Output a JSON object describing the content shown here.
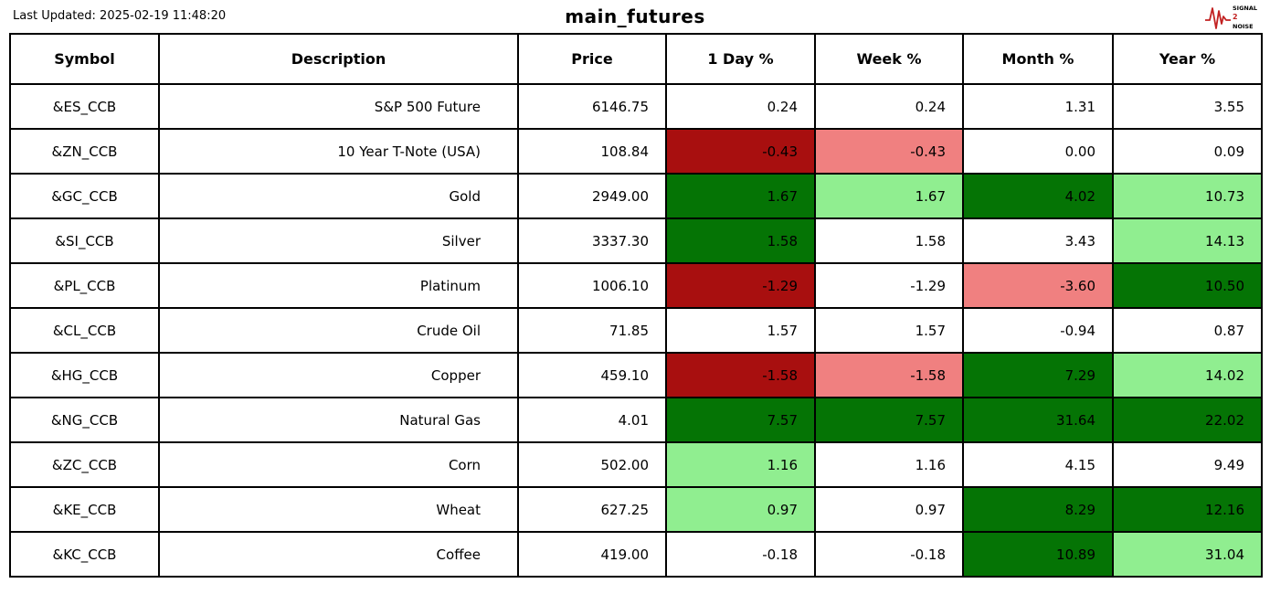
{
  "header": {
    "last_updated": "Last Updated: 2025-02-19 11:48:20",
    "title": "main_futures",
    "logo": {
      "word1": "SIGNAL",
      "word2": "2",
      "word3": "NOISE"
    }
  },
  "colors": {
    "dark_red": "#a80f0f",
    "light_red": "#f08080",
    "dark_green": "#057405",
    "light_green": "#90ee90",
    "border": "#000000",
    "background": "#ffffff",
    "logo_red": "#c22222"
  },
  "chart_data": {
    "type": "table",
    "title": "main_futures",
    "columns": [
      "Symbol",
      "Description",
      "Price",
      "1 Day %",
      "Week %",
      "Month %",
      "Year %"
    ],
    "rows": [
      {
        "symbol": "&ES_CCB",
        "description": "S&P 500 Future",
        "price": "6146.75",
        "values": {
          "day": "0.24",
          "week": "0.24",
          "month": "1.31",
          "year": "3.55"
        },
        "backgrounds": {
          "day": null,
          "week": null,
          "month": null,
          "year": null
        }
      },
      {
        "symbol": "&ZN_CCB",
        "description": "10 Year T-Note (USA)",
        "price": "108.84",
        "values": {
          "day": "-0.43",
          "week": "-0.43",
          "month": "0.00",
          "year": "0.09"
        },
        "backgrounds": {
          "day": "dark_red",
          "week": "light_red",
          "month": null,
          "year": null
        }
      },
      {
        "symbol": "&GC_CCB",
        "description": "Gold",
        "price": "2949.00",
        "values": {
          "day": "1.67",
          "week": "1.67",
          "month": "4.02",
          "year": "10.73"
        },
        "backgrounds": {
          "day": "dark_green",
          "week": "light_green",
          "month": "dark_green",
          "year": "light_green"
        }
      },
      {
        "symbol": "&SI_CCB",
        "description": "Silver",
        "price": "3337.30",
        "values": {
          "day": "1.58",
          "week": "1.58",
          "month": "3.43",
          "year": "14.13"
        },
        "backgrounds": {
          "day": "dark_green",
          "week": null,
          "month": null,
          "year": "light_green"
        }
      },
      {
        "symbol": "&PL_CCB",
        "description": "Platinum",
        "price": "1006.10",
        "values": {
          "day": "-1.29",
          "week": "-1.29",
          "month": "-3.60",
          "year": "10.50"
        },
        "backgrounds": {
          "day": "dark_red",
          "week": null,
          "month": "light_red",
          "year": "dark_green"
        }
      },
      {
        "symbol": "&CL_CCB",
        "description": "Crude Oil",
        "price": "71.85",
        "values": {
          "day": "1.57",
          "week": "1.57",
          "month": "-0.94",
          "year": "0.87"
        },
        "backgrounds": {
          "day": null,
          "week": null,
          "month": null,
          "year": null
        }
      },
      {
        "symbol": "&HG_CCB",
        "description": "Copper",
        "price": "459.10",
        "values": {
          "day": "-1.58",
          "week": "-1.58",
          "month": "7.29",
          "year": "14.02"
        },
        "backgrounds": {
          "day": "dark_red",
          "week": "light_red",
          "month": "dark_green",
          "year": "light_green"
        }
      },
      {
        "symbol": "&NG_CCB",
        "description": "Natural Gas",
        "price": "4.01",
        "values": {
          "day": "7.57",
          "week": "7.57",
          "month": "31.64",
          "year": "22.02"
        },
        "backgrounds": {
          "day": "dark_green",
          "week": "dark_green",
          "month": "dark_green",
          "year": "dark_green"
        }
      },
      {
        "symbol": "&ZC_CCB",
        "description": "Corn",
        "price": "502.00",
        "values": {
          "day": "1.16",
          "week": "1.16",
          "month": "4.15",
          "year": "9.49"
        },
        "backgrounds": {
          "day": "light_green",
          "week": null,
          "month": null,
          "year": null
        }
      },
      {
        "symbol": "&KE_CCB",
        "description": "Wheat",
        "price": "627.25",
        "values": {
          "day": "0.97",
          "week": "0.97",
          "month": "8.29",
          "year": "12.16"
        },
        "backgrounds": {
          "day": "light_green",
          "week": null,
          "month": "dark_green",
          "year": "dark_green"
        }
      },
      {
        "symbol": "&KC_CCB",
        "description": "Coffee",
        "price": "419.00",
        "values": {
          "day": "-0.18",
          "week": "-0.18",
          "month": "10.89",
          "year": "31.04"
        },
        "backgrounds": {
          "day": null,
          "week": null,
          "month": "dark_green",
          "year": "light_green"
        }
      }
    ]
  }
}
